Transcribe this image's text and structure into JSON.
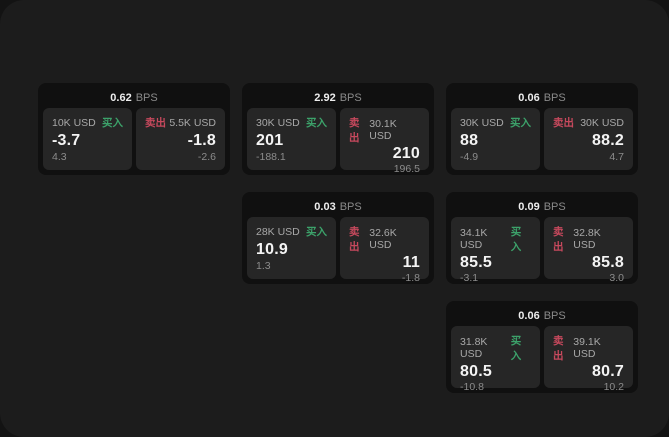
{
  "colors": {
    "page_bg": "#131313",
    "window_bg": "#1c1c1c",
    "card_bg": "#101010",
    "panel_bg": "#262626",
    "buy_green": "#3ca26a",
    "sell_red": "#c7495d",
    "value_white": "#f4f4f4",
    "label_gray": "#a8a8a8"
  },
  "cards": [
    {
      "spread": "0.62",
      "unit": "BPS",
      "buy": {
        "size": "10K USD",
        "label": "买入",
        "price": "-3.7",
        "delta": "4.3"
      },
      "sell": {
        "label": "卖出",
        "size": "5.5K USD",
        "price": "-1.8",
        "delta": "-2.6"
      }
    },
    {
      "spread": "2.92",
      "unit": "BPS",
      "buy": {
        "size": "30K USD",
        "label": "买入",
        "price": "201",
        "delta": "-188.1"
      },
      "sell": {
        "label": "卖出",
        "size": "30.1K USD",
        "price": "210",
        "delta": "196.5"
      }
    },
    {
      "spread": "0.06",
      "unit": "BPS",
      "buy": {
        "size": "30K USD",
        "label": "买入",
        "price": "88",
        "delta": "-4.9"
      },
      "sell": {
        "label": "卖出",
        "size": "30K USD",
        "price": "88.2",
        "delta": "4.7"
      }
    },
    {
      "spread": "0.03",
      "unit": "BPS",
      "buy": {
        "size": "28K USD",
        "label": "买入",
        "price": "10.9",
        "delta": "1.3"
      },
      "sell": {
        "label": "卖出",
        "size": "32.6K USD",
        "price": "11",
        "delta": "-1.8"
      }
    },
    {
      "spread": "0.09",
      "unit": "BPS",
      "buy": {
        "size": "34.1K USD",
        "label": "买入",
        "price": "85.5",
        "delta": "-3.1"
      },
      "sell": {
        "label": "卖出",
        "size": "32.8K USD",
        "price": "85.8",
        "delta": "3.0"
      }
    },
    {
      "spread": "0.06",
      "unit": "BPS",
      "buy": {
        "size": "31.8K USD",
        "label": "买入",
        "price": "80.5",
        "delta": "-10.8"
      },
      "sell": {
        "label": "卖出",
        "size": "39.1K USD",
        "price": "80.7",
        "delta": "10.2"
      }
    }
  ]
}
